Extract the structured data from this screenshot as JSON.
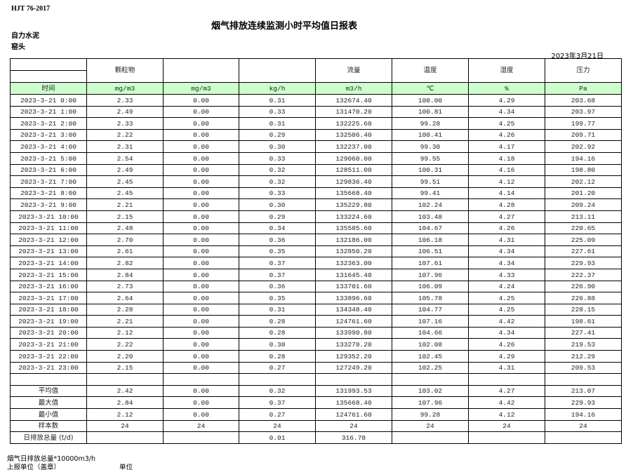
{
  "header": {
    "standard": "HJT  76-2017",
    "title": "烟气排放连续监测小时平均值日报表",
    "company": "自力水泥",
    "point": "窑头",
    "date": "2023年3月21日"
  },
  "table": {
    "columns": [
      "",
      "颗粒物",
      "",
      "",
      "流量",
      "温度",
      "湿度",
      "压力"
    ],
    "units": [
      "时间",
      "mg/m3",
      "mg/m3",
      "kg/h",
      "m3/h",
      "℃",
      "%",
      "Pa"
    ],
    "rows": [
      [
        "2023-3-21 0:00",
        "2.33",
        "0.00",
        "0.31",
        "132674.40",
        "100.00",
        "4.29",
        "203.68"
      ],
      [
        "2023-3-21 1:00",
        "2.49",
        "0.00",
        "0.33",
        "131470.20",
        "100.81",
        "4.34",
        "203.97"
      ],
      [
        "2023-3-21 2:00",
        "2.33",
        "0.00",
        "0.31",
        "132225.60",
        "99.28",
        "4.25",
        "199.77"
      ],
      [
        "2023-3-21 3:00",
        "2.22",
        "0.00",
        "0.29",
        "132506.40",
        "100.41",
        "4.26",
        "209.71"
      ],
      [
        "2023-3-21 4:00",
        "2.31",
        "0.00",
        "0.30",
        "132237.00",
        "99.30",
        "4.17",
        "202.92"
      ],
      [
        "2023-3-21 5:00",
        "2.54",
        "0.00",
        "0.33",
        "129060.00",
        "99.55",
        "4.18",
        "194.16"
      ],
      [
        "2023-3-21 6:00",
        "2.49",
        "0.00",
        "0.32",
        "128511.00",
        "100.31",
        "4.16",
        "198.80"
      ],
      [
        "2023-3-21 7:00",
        "2.45",
        "0.00",
        "0.32",
        "129836.40",
        "99.51",
        "4.12",
        "202.12"
      ],
      [
        "2023-3-21 8:00",
        "2.45",
        "0.00",
        "0.33",
        "135668.40",
        "99.41",
        "4.14",
        "201.20"
      ],
      [
        "2023-3-21 9:00",
        "2.21",
        "0.00",
        "0.30",
        "135229.80",
        "102.24",
        "4.28",
        "209.24"
      ],
      [
        "2023-3-21 10:00",
        "2.15",
        "0.00",
        "0.29",
        "133224.60",
        "103.48",
        "4.27",
        "213.11"
      ],
      [
        "2023-3-21 11:00",
        "2.48",
        "0.00",
        "0.34",
        "135585.60",
        "104.67",
        "4.26",
        "220.65"
      ],
      [
        "2023-3-21 12:00",
        "2.70",
        "0.00",
        "0.36",
        "132186.00",
        "106.18",
        "4.31",
        "225.09"
      ],
      [
        "2023-3-21 13:00",
        "2.61",
        "0.00",
        "0.35",
        "132850.20",
        "106.51",
        "4.34",
        "227.61"
      ],
      [
        "2023-3-21 14:00",
        "2.82",
        "0.00",
        "0.37",
        "132363.00",
        "107.61",
        "4.34",
        "229.93"
      ],
      [
        "2023-3-21 15:00",
        "2.84",
        "0.00",
        "0.37",
        "131645.40",
        "107.96",
        "4.33",
        "222.37"
      ],
      [
        "2023-3-21 16:00",
        "2.73",
        "0.00",
        "0.36",
        "133701.60",
        "106.09",
        "4.24",
        "226.90"
      ],
      [
        "2023-3-21 17:00",
        "2.64",
        "0.00",
        "0.35",
        "133896.60",
        "105.78",
        "4.25",
        "226.88"
      ],
      [
        "2023-3-21 18:00",
        "2.28",
        "0.00",
        "0.31",
        "134348.40",
        "104.77",
        "4.25",
        "228.15"
      ],
      [
        "2023-3-21 19:00",
        "2.21",
        "0.00",
        "0.28",
        "124761.60",
        "107.16",
        "4.42",
        "198.61"
      ],
      [
        "2023-3-21 20:00",
        "2.12",
        "0.00",
        "0.28",
        "133990.80",
        "104.66",
        "4.34",
        "227.41"
      ],
      [
        "2023-3-21 21:00",
        "2.22",
        "0.00",
        "0.30",
        "133270.20",
        "102.08",
        "4.26",
        "219.53"
      ],
      [
        "2023-3-21 22:00",
        "2.20",
        "0.00",
        "0.28",
        "129352.20",
        "102.45",
        "4.29",
        "212.29"
      ],
      [
        "2023-3-21 23:00",
        "2.15",
        "0.00",
        "0.27",
        "127249.20",
        "102.25",
        "4.31",
        "209.53"
      ]
    ],
    "summary": [
      [
        "",
        "",
        "",
        "",
        "",
        "",
        "",
        ""
      ],
      [
        "平均值",
        "2.42",
        "0.00",
        "0.32",
        "131993.53",
        "103.02",
        "4.27",
        "213.07"
      ],
      [
        "最大值",
        "2.84",
        "0.00",
        "0.37",
        "135668.40",
        "107.96",
        "4.42",
        "229.93"
      ],
      [
        "最小值",
        "2.12",
        "0.00",
        "0.27",
        "124761.60",
        "99.28",
        "4.12",
        "194.16"
      ],
      [
        "样本数",
        "24",
        "24",
        "24",
        "24",
        "24",
        "24",
        "24"
      ],
      [
        "日排放总量 (t/d)",
        "",
        "",
        "0.01",
        "316.78",
        "",
        "",
        ""
      ]
    ]
  },
  "footer": {
    "note": "烟气日排放总量*10000m3/h",
    "reporter": "上报单位（盖章）",
    "unit": "单位"
  }
}
